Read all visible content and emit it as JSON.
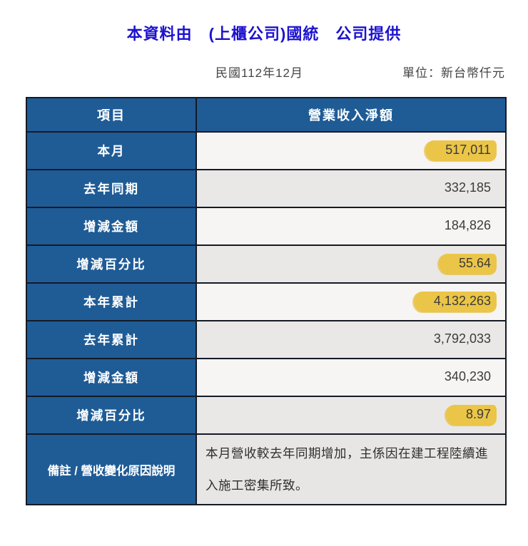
{
  "page": {
    "title": "本資料由　(上櫃公司)國統　公司提供",
    "period": "民國112年12月",
    "unit": "單位：新台幣仟元"
  },
  "table": {
    "headers": [
      "項目",
      "營業收入淨額"
    ],
    "rows": [
      {
        "label": "本月",
        "value": "517,011",
        "highlight": true
      },
      {
        "label": "去年同期",
        "value": "332,185",
        "highlight": false
      },
      {
        "label": "增減金額",
        "value": "184,826",
        "highlight": false
      },
      {
        "label": "增減百分比",
        "value": "55.64",
        "highlight": true
      },
      {
        "label": "本年累計",
        "value": "4,132,263",
        "highlight": true
      },
      {
        "label": "去年累計",
        "value": "3,792,033",
        "highlight": false
      },
      {
        "label": "增減金額",
        "value": "340,230",
        "highlight": false
      },
      {
        "label": "增減百分比",
        "value": "8.97",
        "highlight": true
      }
    ],
    "remark": {
      "label": "備註 / 營收變化原因說明",
      "text": "本月營收較去年同期增加，主係因在建工程陸續進入施工密集所致。"
    }
  },
  "colors": {
    "header_bg": "#1f5c96",
    "title_blue": "#1c12cf",
    "highlight_yellow": "#ebc547",
    "border_dark": "#141a26",
    "row_light": "#f6f5f3",
    "row_gray": "#e9e8e6"
  }
}
